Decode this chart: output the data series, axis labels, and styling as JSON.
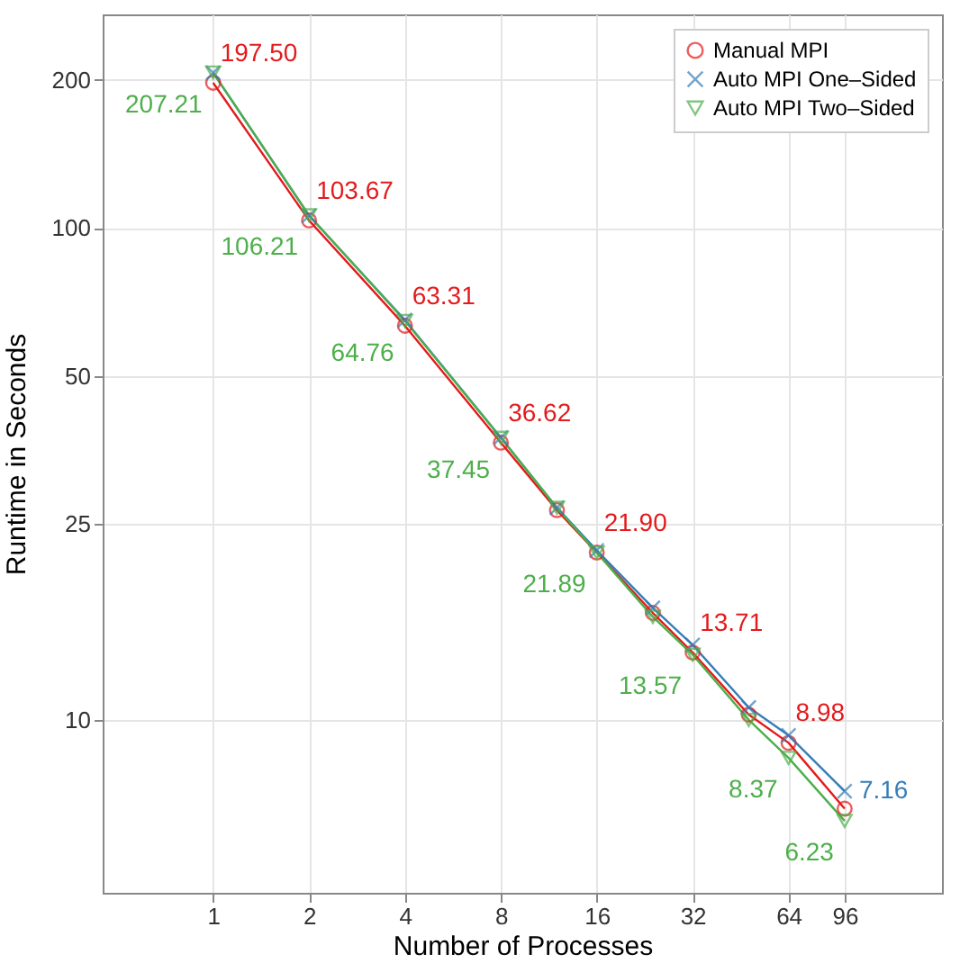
{
  "chart_data": {
    "type": "line",
    "xlabel": "Number of Processes",
    "ylabel": "Runtime in Seconds",
    "log": "xy",
    "grid": true,
    "legend": "top right",
    "x": [
      1,
      2,
      4,
      8,
      12,
      16,
      24,
      32,
      48,
      64,
      96
    ],
    "xlim": [
      0.45,
      194
    ],
    "xticks": [
      1,
      2,
      4,
      8,
      16,
      32,
      64,
      96
    ],
    "ylim": [
      4.45,
      272
    ],
    "yticks": [
      10,
      25,
      50,
      100,
      200
    ],
    "series": [
      {
        "name": "Manual MPI",
        "color": "#e41a1c",
        "marker": "circle",
        "values": [
          197.5,
          103.67,
          63.31,
          36.62,
          26.7,
          21.9,
          16.5,
          13.71,
          10.25,
          8.98,
          6.6
        ],
        "value_labels": [
          "197.50",
          "103.67",
          "63.31",
          "36.62",
          null,
          "21.90",
          null,
          "13.71",
          null,
          "8.98",
          null
        ]
      },
      {
        "name": "Auto MPI One–Sided",
        "color": "#377eb8",
        "marker": "cross",
        "values": [
          207,
          106,
          65,
          37.5,
          27,
          22.1,
          16.9,
          14.2,
          10.6,
          9.3,
          7.16
        ],
        "value_labels": [
          null,
          null,
          null,
          null,
          null,
          null,
          null,
          null,
          null,
          null,
          "7.16"
        ]
      },
      {
        "name": "Auto MPI Two–Sided",
        "color": "#4daf4a",
        "marker": "triangle",
        "values": [
          207.21,
          106.21,
          64.76,
          37.45,
          27,
          21.89,
          16.2,
          13.57,
          10.0,
          8.37,
          6.23
        ],
        "value_labels": [
          "207.21",
          "106.21",
          "64.76",
          "37.45",
          null,
          "21.89",
          null,
          "13.57",
          null,
          "8.37",
          "6.23"
        ]
      }
    ]
  }
}
